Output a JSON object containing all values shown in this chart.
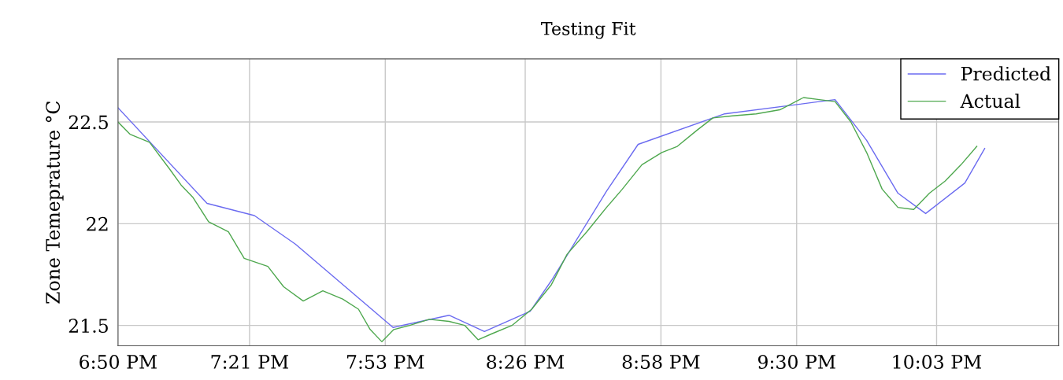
{
  "chart_data": {
    "type": "line",
    "title": "Testing Fit",
    "ylabel": "Zone Temeprature °C",
    "xlim": [
      18.833,
      22.53
    ],
    "ylim": [
      21.4,
      22.81
    ],
    "xticks": [
      {
        "value": 18.833,
        "label": "6:50 PM"
      },
      {
        "value": 19.35,
        "label": "7:21 PM"
      },
      {
        "value": 19.8833,
        "label": "7:53 PM"
      },
      {
        "value": 20.4333,
        "label": "8:26 PM"
      },
      {
        "value": 20.9667,
        "label": "8:58 PM"
      },
      {
        "value": 21.5,
        "label": "9:30 PM"
      },
      {
        "value": 22.05,
        "label": "10:03 PM"
      }
    ],
    "yticks": [
      21.5,
      22,
      22.5
    ],
    "grid": true,
    "legend": "top right",
    "marker": "none",
    "line_style": "solid",
    "series": [
      {
        "name": "Predicted",
        "color": "#6b6bf0",
        "x": [
          18.833,
          19.183,
          19.369,
          19.53,
          19.914,
          20.134,
          20.273,
          20.453,
          20.536,
          20.753,
          20.877,
          21.217,
          21.589,
          21.651,
          21.775,
          21.898,
          22.007,
          22.161,
          22.239
        ],
        "values": [
          22.57,
          22.1,
          22.04,
          21.9,
          21.49,
          21.55,
          21.47,
          21.57,
          21.72,
          22.16,
          22.39,
          22.54,
          22.6,
          22.61,
          22.41,
          22.15,
          22.05,
          22.2,
          22.37
        ]
      },
      {
        "name": "Actual",
        "color": "#4fa84f",
        "x": [
          18.833,
          18.88,
          18.957,
          19.035,
          19.081,
          19.127,
          19.189,
          19.267,
          19.329,
          19.422,
          19.484,
          19.561,
          19.638,
          19.716,
          19.778,
          19.824,
          19.87,
          19.917,
          19.979,
          20.056,
          20.134,
          20.196,
          20.248,
          20.304,
          20.381,
          20.459,
          20.536,
          20.598,
          20.675,
          20.753,
          20.815,
          20.892,
          20.97,
          21.031,
          21.109,
          21.171,
          21.248,
          21.341,
          21.434,
          21.527,
          21.589,
          21.651,
          21.713,
          21.775,
          21.836,
          21.898,
          21.96,
          22.022,
          22.084,
          22.146,
          22.208
        ],
        "values": [
          22.5,
          22.44,
          22.4,
          22.27,
          22.19,
          22.13,
          22.01,
          21.96,
          21.83,
          21.79,
          21.69,
          21.62,
          21.67,
          21.63,
          21.58,
          21.48,
          21.42,
          21.48,
          21.5,
          21.53,
          21.52,
          21.5,
          21.43,
          21.46,
          21.5,
          21.58,
          21.7,
          21.85,
          21.96,
          22.08,
          22.17,
          22.29,
          22.35,
          22.38,
          22.46,
          22.52,
          22.53,
          22.54,
          22.56,
          22.62,
          22.61,
          22.6,
          22.5,
          22.35,
          22.17,
          22.08,
          22.07,
          22.15,
          22.21,
          22.29,
          22.38
        ]
      }
    ]
  }
}
